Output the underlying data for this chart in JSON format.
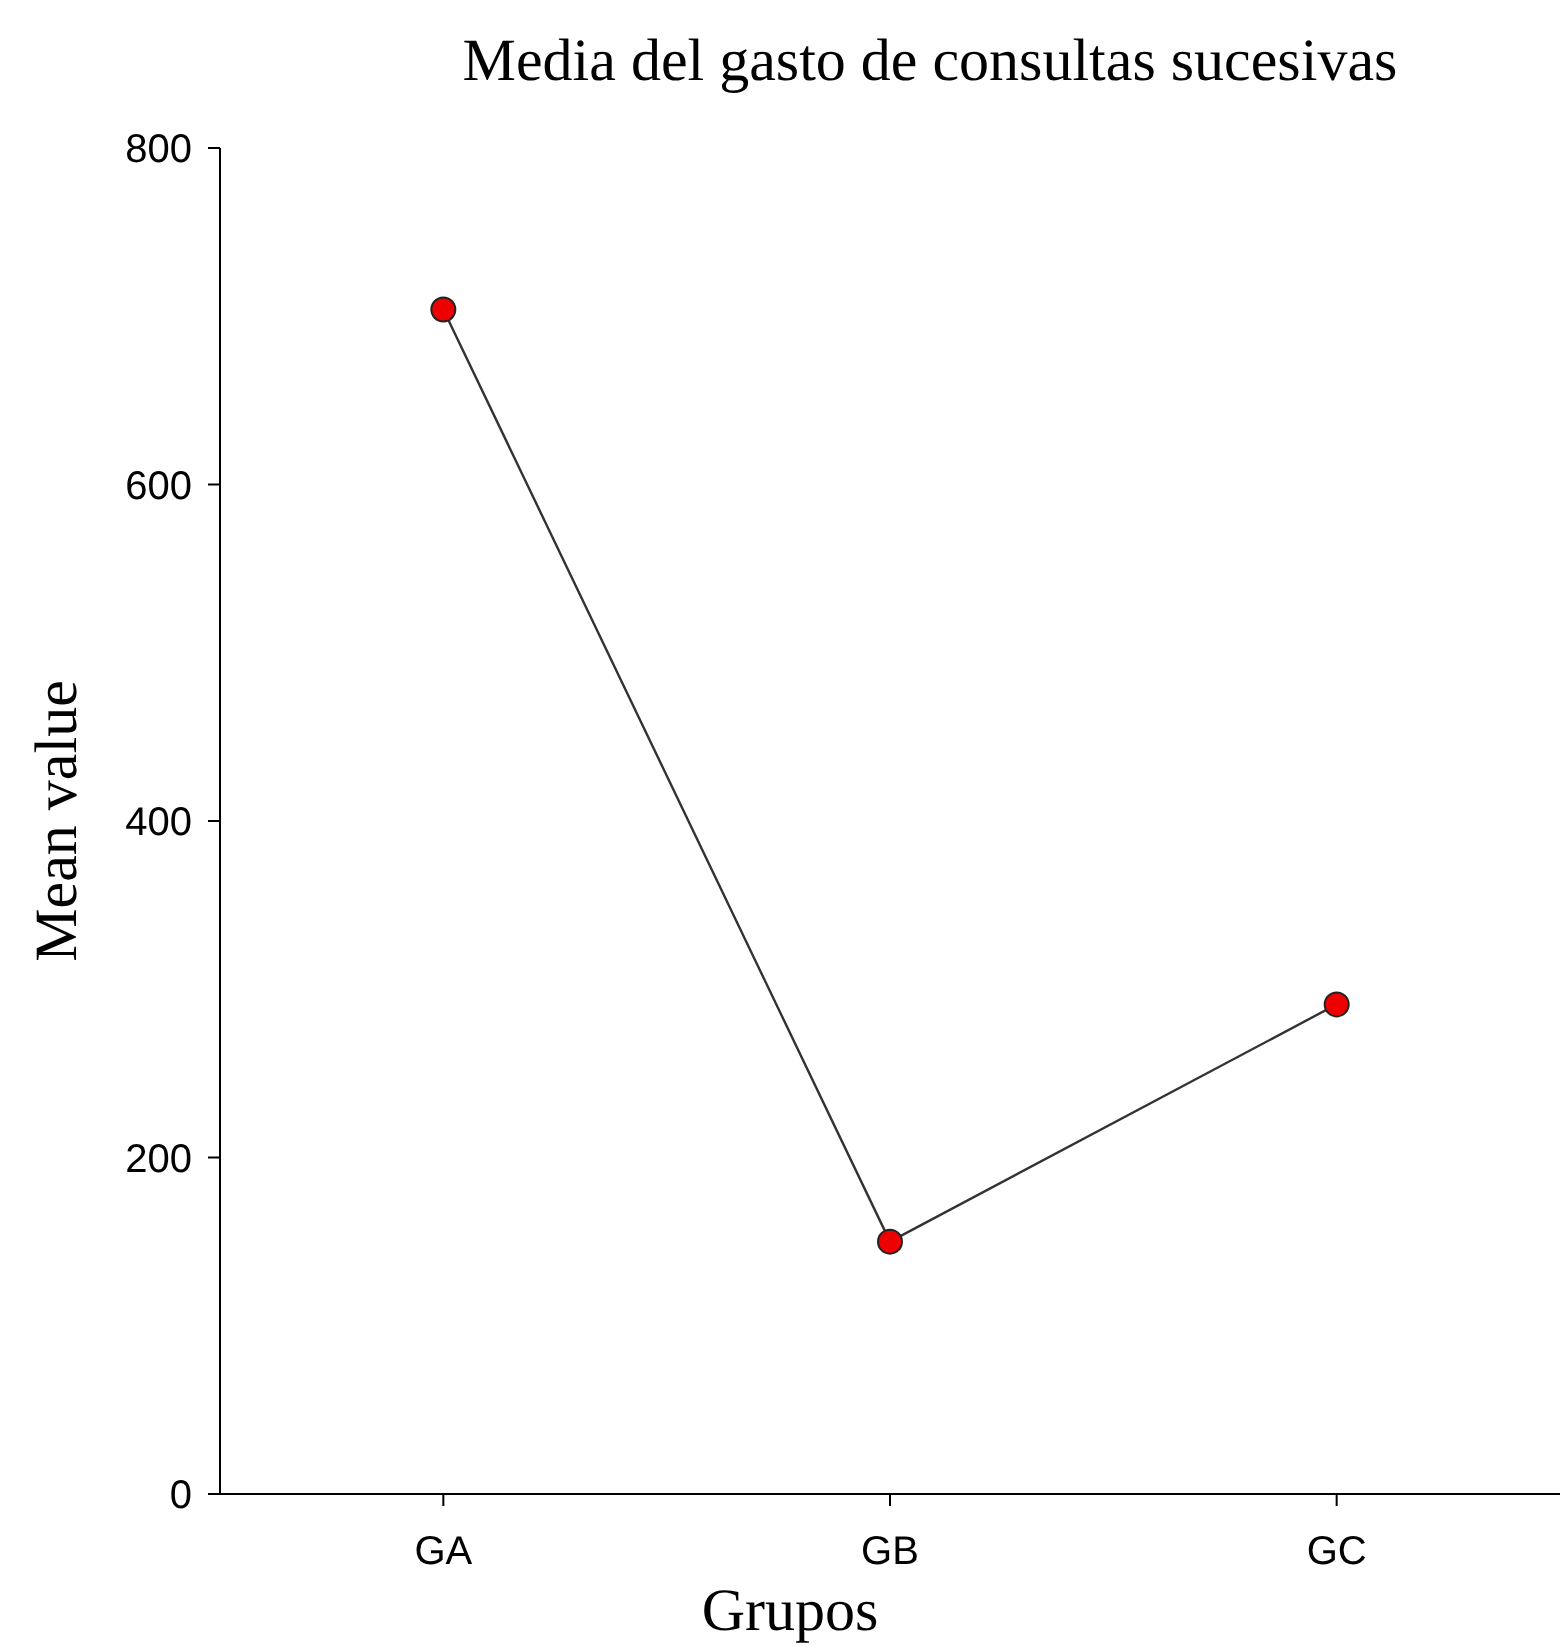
{
  "chart_data": {
    "type": "line",
    "title": "Media del gasto de consultas sucesivas",
    "xlabel": "Grupos",
    "ylabel": "Mean value",
    "categories": [
      "GA",
      "GB",
      "GC"
    ],
    "series": [
      {
        "color": "#ee0000",
        "values": [
          704,
          150,
          291
        ]
      }
    ],
    "ylim": [
      0,
      800
    ],
    "yticks": [
      0,
      200,
      400,
      600,
      800
    ],
    "grid": false,
    "marker": "circle",
    "line_style": "solid"
  }
}
